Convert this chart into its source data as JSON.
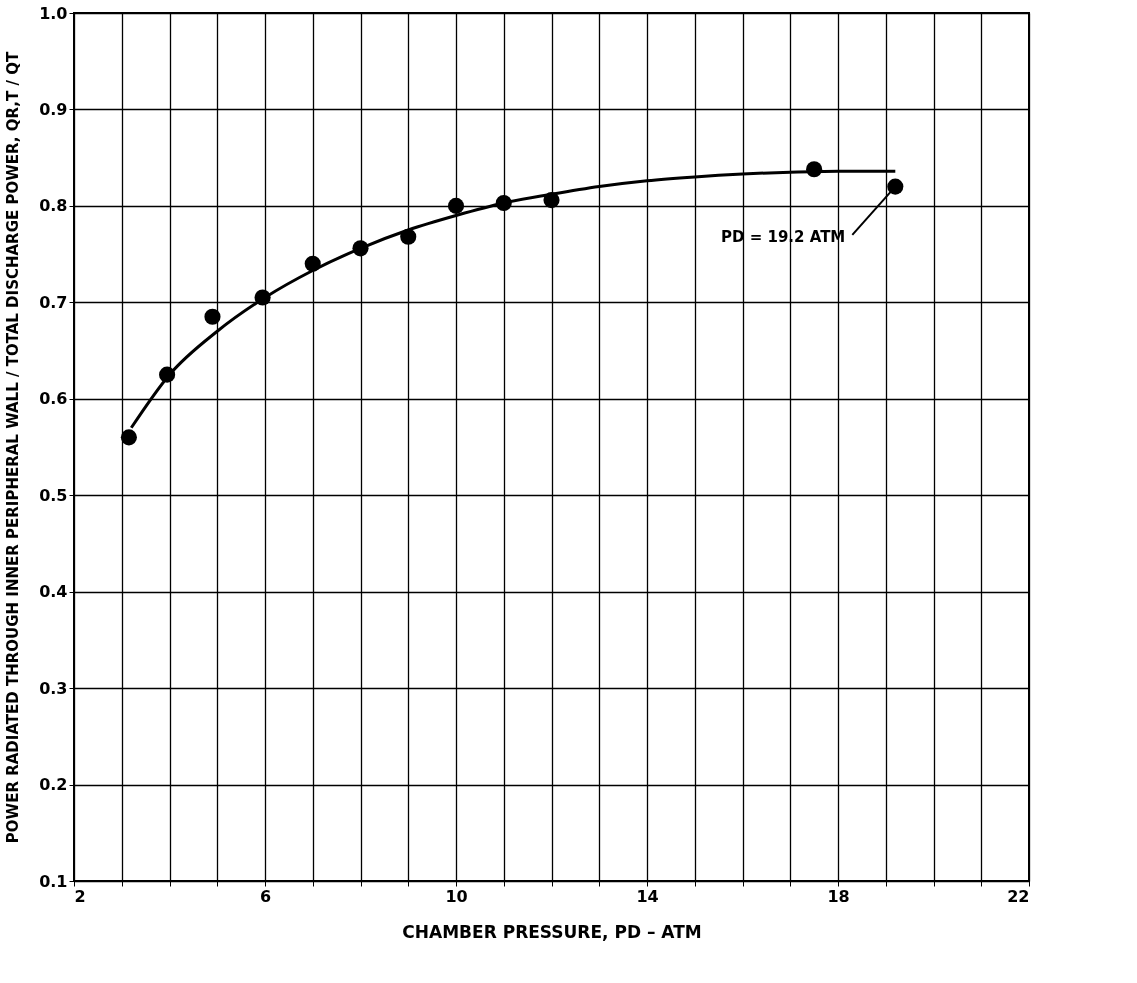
{
  "chart_data": {
    "type": "scatter",
    "xlabel": "CHAMBER PRESSURE, PD – ATM",
    "ylabel": "POWER RADIATED THROUGH INNER PERIPHERAL WALL / TOTAL DISCHARGE POWER,  QR,T / QT",
    "series": [
      {
        "color": "#000000",
        "marker": "circle",
        "x": [
          3.15,
          3.95,
          4.9,
          5.95,
          7.0,
          8.0,
          9.0,
          10.0,
          11.0,
          12.0,
          17.5,
          19.2
        ],
        "values": [
          0.56,
          0.625,
          0.685,
          0.705,
          0.74,
          0.756,
          0.768,
          0.8,
          0.803,
          0.806,
          0.838,
          0.82
        ]
      },
      {
        "type": "line",
        "color": "#000000",
        "line_style": "solid",
        "x": [
          3.2,
          4.0,
          5.0,
          6.0,
          7.0,
          8.0,
          9.0,
          10.0,
          11.0,
          12.0,
          13.0,
          14.0,
          15.0,
          16.0,
          17.0,
          18.0,
          19.2
        ],
        "values": [
          0.57,
          0.625,
          0.67,
          0.705,
          0.733,
          0.756,
          0.775,
          0.79,
          0.803,
          0.812,
          0.82,
          0.826,
          0.83,
          0.833,
          0.835,
          0.836,
          0.836
        ]
      }
    ],
    "annotations": [
      {
        "text": "PD = 19.2 ATM",
        "x": 19.2,
        "y": 0.82
      }
    ],
    "xlim": [
      2,
      22
    ],
    "xticks": [
      2,
      {
        "value": 3,
        "label": null
      },
      {
        "value": 4,
        "label": null
      },
      {
        "value": 5,
        "label": null
      },
      6,
      {
        "value": 7,
        "label": null
      },
      {
        "value": 8,
        "label": null
      },
      {
        "value": 9,
        "label": null
      },
      10,
      {
        "value": 11,
        "label": null
      },
      {
        "value": 12,
        "label": null
      },
      {
        "value": 13,
        "label": null
      },
      14,
      {
        "value": 15,
        "label": null
      },
      {
        "value": 16,
        "label": null
      },
      {
        "value": 17,
        "label": null
      },
      18,
      {
        "value": 19,
        "label": null
      },
      {
        "value": 20,
        "label": null
      },
      {
        "value": 21,
        "label": null
      },
      22
    ],
    "ylim": [
      0.1,
      1.0
    ],
    "yticks": [
      0.1,
      0.2,
      0.3,
      0.4,
      0.5,
      0.6,
      0.7,
      0.8,
      0.9,
      {
        "value": 1.0,
        "label": "1.0"
      }
    ],
    "grid": true
  }
}
